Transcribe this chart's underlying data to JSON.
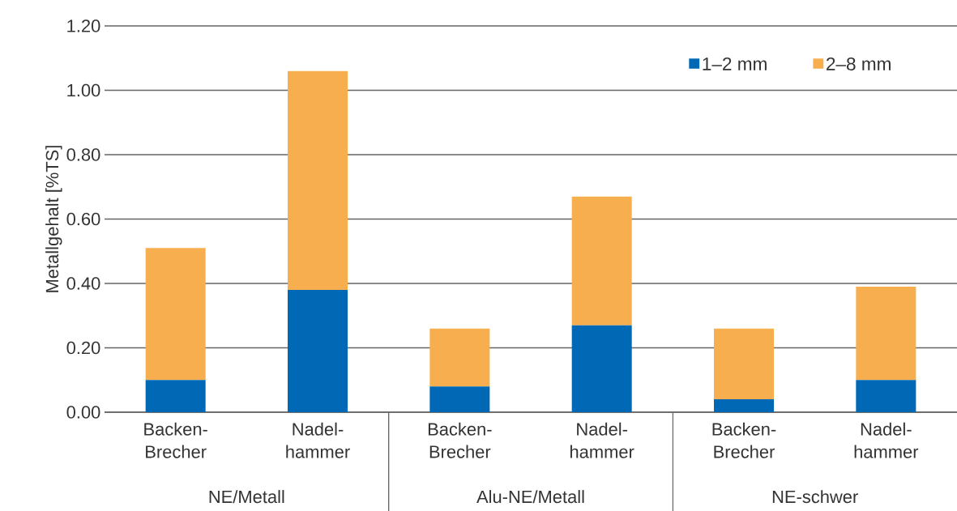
{
  "chart_data": {
    "type": "bar",
    "stacked": true,
    "ylabel": "Metallgehalt [%TS]",
    "categories": [
      "Backen-Brecher",
      "Nadel-hammer",
      "Backen-Brecher",
      "Nadel-hammer",
      "Backen-Brecher",
      "Nadel-hammer"
    ],
    "series": [
      {
        "name": "1–2 mm",
        "color": "#0068b4",
        "values": [
          0.1,
          0.38,
          0.08,
          0.27,
          0.04,
          0.1
        ]
      },
      {
        "name": "2–8 mm",
        "color": "#f6ae4e",
        "values": [
          0.41,
          0.68,
          0.18,
          0.4,
          0.22,
          0.29
        ]
      }
    ],
    "ylim": [
      0,
      1.2
    ],
    "yticks": [
      {
        "value": 0,
        "label": "0.00"
      },
      {
        "value": 0.2,
        "label": "0.20"
      },
      {
        "value": 0.4,
        "label": "0.40"
      },
      {
        "value": 0.6,
        "label": "0.60"
      },
      {
        "value": 0.8,
        "label": "0.80"
      },
      {
        "value": 1.0,
        "label": "1.00"
      },
      {
        "value": 1.2,
        "label": "1.20"
      }
    ],
    "grid": "y",
    "legend": "top right",
    "annotations": [
      "NE/Metall",
      "Alu-NE/Metall",
      "NE-schwer"
    ]
  }
}
